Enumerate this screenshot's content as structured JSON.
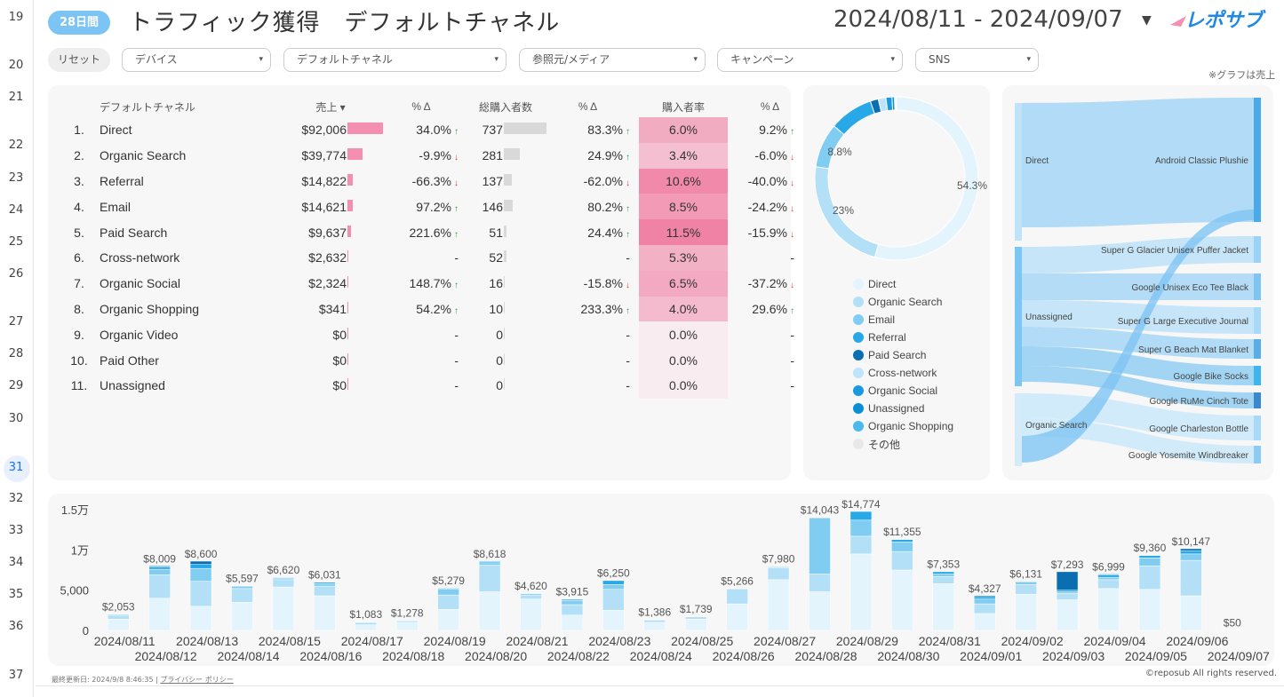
{
  "row_numbers": [
    "19",
    "20",
    "21",
    "22",
    "23",
    "24",
    "25",
    "26",
    "27",
    "28",
    "29",
    "30",
    "31",
    "32",
    "33",
    "34",
    "35",
    "36",
    "37"
  ],
  "active_row": "31",
  "header": {
    "period_badge": "28日間",
    "title": "トラフィック獲得　デフォルトチャネル",
    "date_range": "2024/08/11 - 2024/09/07",
    "date_caret": "▼",
    "logo_text": "レポサブ"
  },
  "filters": {
    "reset": "リセット",
    "items": [
      {
        "label": "デバイス"
      },
      {
        "label": "デフォルトチャネル"
      },
      {
        "label": "参照元/メディア"
      },
      {
        "label": "キャンペーン"
      },
      {
        "label": "SNS"
      }
    ],
    "caret": "▾"
  },
  "note": "※グラフは売上",
  "table": {
    "headers": {
      "channel": "デフォルトチャネル",
      "sales": "売上 ▾",
      "pct1": "% Δ",
      "buyers": "総購入者数",
      "pct2": "% Δ",
      "rate": "購入者率",
      "pct3": "% Δ"
    },
    "rows": [
      {
        "idx": "1.",
        "channel": "Direct",
        "sales": "$92,006",
        "sales_val": 92006,
        "pct1": "34.0%",
        "pct1_dir": "up",
        "buyers": "737",
        "buyers_val": 737,
        "pct2": "83.3%",
        "pct2_dir": "up",
        "rate": "6.0%",
        "rate_val": 6.0,
        "pct3": "9.2%",
        "pct3_dir": "up"
      },
      {
        "idx": "2.",
        "channel": "Organic Search",
        "sales": "$39,774",
        "sales_val": 39774,
        "pct1": "-9.9%",
        "pct1_dir": "down",
        "buyers": "281",
        "buyers_val": 281,
        "pct2": "24.9%",
        "pct2_dir": "up",
        "rate": "3.4%",
        "rate_val": 3.4,
        "pct3": "-6.0%",
        "pct3_dir": "down"
      },
      {
        "idx": "3.",
        "channel": "Referral",
        "sales": "$14,822",
        "sales_val": 14822,
        "pct1": "-66.3%",
        "pct1_dir": "down",
        "buyers": "137",
        "buyers_val": 137,
        "pct2": "-62.0%",
        "pct2_dir": "down",
        "rate": "10.6%",
        "rate_val": 10.6,
        "pct3": "-40.0%",
        "pct3_dir": "down"
      },
      {
        "idx": "4.",
        "channel": "Email",
        "sales": "$14,621",
        "sales_val": 14621,
        "pct1": "97.2%",
        "pct1_dir": "up",
        "buyers": "146",
        "buyers_val": 146,
        "pct2": "80.2%",
        "pct2_dir": "up",
        "rate": "8.5%",
        "rate_val": 8.5,
        "pct3": "-24.2%",
        "pct3_dir": "down"
      },
      {
        "idx": "5.",
        "channel": "Paid Search",
        "sales": "$9,637",
        "sales_val": 9637,
        "pct1": "221.6%",
        "pct1_dir": "up",
        "buyers": "51",
        "buyers_val": 51,
        "pct2": "24.4%",
        "pct2_dir": "up",
        "rate": "11.5%",
        "rate_val": 11.5,
        "pct3": "-15.9%",
        "pct3_dir": "down"
      },
      {
        "idx": "6.",
        "channel": "Cross-network",
        "sales": "$2,632",
        "sales_val": 2632,
        "pct1": "-",
        "pct1_dir": "none",
        "buyers": "52",
        "buyers_val": 52,
        "pct2": "-",
        "pct2_dir": "none",
        "rate": "5.3%",
        "rate_val": 5.3,
        "pct3": "-",
        "pct3_dir": "none"
      },
      {
        "idx": "7.",
        "channel": "Organic Social",
        "sales": "$2,324",
        "sales_val": 2324,
        "pct1": "148.7%",
        "pct1_dir": "up",
        "buyers": "16",
        "buyers_val": 16,
        "pct2": "-15.8%",
        "pct2_dir": "down",
        "rate": "6.5%",
        "rate_val": 6.5,
        "pct3": "-37.2%",
        "pct3_dir": "down"
      },
      {
        "idx": "8.",
        "channel": "Organic Shopping",
        "sales": "$341",
        "sales_val": 341,
        "pct1": "54.2%",
        "pct1_dir": "up",
        "buyers": "10",
        "buyers_val": 10,
        "pct2": "233.3%",
        "pct2_dir": "up",
        "rate": "4.0%",
        "rate_val": 4.0,
        "pct3": "29.6%",
        "pct3_dir": "up"
      },
      {
        "idx": "9.",
        "channel": "Organic Video",
        "sales": "$0",
        "sales_val": 0,
        "pct1": "-",
        "pct1_dir": "none",
        "buyers": "0",
        "buyers_val": 0,
        "pct2": "-",
        "pct2_dir": "none",
        "rate": "0.0%",
        "rate_val": 0,
        "pct3": "-",
        "pct3_dir": "none"
      },
      {
        "idx": "10.",
        "channel": "Paid Other",
        "sales": "$0",
        "sales_val": 0,
        "pct1": "-",
        "pct1_dir": "none",
        "buyers": "0",
        "buyers_val": 0,
        "pct2": "-",
        "pct2_dir": "none",
        "rate": "0.0%",
        "rate_val": 0,
        "pct3": "-",
        "pct3_dir": "none"
      },
      {
        "idx": "11.",
        "channel": "Unassigned",
        "sales": "$0",
        "sales_val": 0,
        "pct1": "-",
        "pct1_dir": "none",
        "buyers": "0",
        "buyers_val": 0,
        "pct2": "-",
        "pct2_dir": "none",
        "rate": "0.0%",
        "rate_val": 0,
        "pct3": "-",
        "pct3_dir": "none"
      }
    ],
    "arrow_up": "↑",
    "arrow_down": "↓"
  },
  "legend": [
    {
      "label": "Direct",
      "color": "#e3f4fd"
    },
    {
      "label": "Organic Search",
      "color": "#b3e0f7"
    },
    {
      "label": "Email",
      "color": "#81cdf2"
    },
    {
      "label": "Referral",
      "color": "#29a8e8"
    },
    {
      "label": "Paid Search",
      "color": "#0a6fb0"
    },
    {
      "label": "Cross-network",
      "color": "#bfe3f8"
    },
    {
      "label": "Organic Social",
      "color": "#1a99e0"
    },
    {
      "label": "Unassigned",
      "color": "#0b8ed6"
    },
    {
      "label": "Organic Shopping",
      "color": "#4cb8ee"
    },
    {
      "label": "その他",
      "color": "#e8e8e8"
    }
  ],
  "sankey": {
    "sources": [
      "Direct",
      "Unassigned",
      "Organic Search"
    ],
    "targets": [
      "Android Classic Plushie",
      "Super G Glacier Unisex Puffer Jacket",
      "Google Unisex Eco Tee Black",
      "Super G Large Executive Journal",
      "Super G Beach Mat Blanket",
      "Google Bike Socks",
      "Google RuMe Cinch Tote",
      "Google Charleston Bottle",
      "Google Yosemite Windbreaker"
    ]
  },
  "chart_data": [
    {
      "type": "pie",
      "title": "",
      "style": "donut",
      "categories": [
        "Direct",
        "Organic Search",
        "Email",
        "Referral",
        "Paid Search",
        "Cross-network",
        "Organic Social",
        "Unassigned",
        "Organic Shopping",
        "その他"
      ],
      "values": [
        54.3,
        23.0,
        8.8,
        8.7,
        1.6,
        1.5,
        1.2,
        0.5,
        0.2,
        0.2
      ],
      "labels": [
        "54.3%",
        "23%",
        "8.8%"
      ]
    },
    {
      "type": "bar",
      "stacked": true,
      "title": "",
      "xlabel": "",
      "ylabel": "",
      "ylim": [
        0,
        15000
      ],
      "yticks": [
        {
          "value": 0,
          "label": "0"
        },
        {
          "value": 5000,
          "label": "5,000"
        },
        {
          "value": 10000,
          "label": "1万"
        },
        {
          "value": 15000,
          "label": "1.5万"
        }
      ],
      "categories": [
        "2024/08/11",
        "2024/08/12",
        "2024/08/13",
        "2024/08/14",
        "2024/08/15",
        "2024/08/16",
        "2024/08/17",
        "2024/08/18",
        "2024/08/19",
        "2024/08/20",
        "2024/08/21",
        "2024/08/22",
        "2024/08/23",
        "2024/08/24",
        "2024/08/25",
        "2024/08/26",
        "2024/08/27",
        "2024/08/28",
        "2024/08/29",
        "2024/08/30",
        "2024/08/31",
        "2024/09/01",
        "2024/09/02",
        "2024/09/03",
        "2024/09/04",
        "2024/09/05",
        "2024/09/06",
        "2024/09/07"
      ],
      "totals": [
        2053,
        8009,
        8600,
        5597,
        6620,
        6031,
        1083,
        1278,
        5279,
        8618,
        4620,
        3915,
        6250,
        1386,
        1739,
        5266,
        7980,
        14043,
        14774,
        11355,
        7353,
        4327,
        6131,
        7293,
        6999,
        9360,
        10147,
        50
      ],
      "total_labels": [
        "$2,053",
        "$8,009",
        "$8,600",
        "$5,597",
        "$6,620",
        "$6,031",
        "$1,083",
        "$1,278",
        "$5,279",
        "$8,618",
        "$4,620",
        "$3,915",
        "$6,250",
        "$1,386",
        "$1,739",
        "$5,266",
        "$7,980",
        "$14,043",
        "$14,774",
        "$11,355",
        "$7,353",
        "$4,327",
        "$6,131",
        "$7,293",
        "$6,999",
        "$9,360",
        "$10,147",
        "$50"
      ],
      "series": [
        {
          "name": "Direct",
          "values": [
            1400,
            4000,
            3000,
            3500,
            5400,
            4300,
            700,
            1000,
            2600,
            4800,
            3900,
            1900,
            2500,
            1000,
            1400,
            3300,
            6300,
            4800,
            9500,
            7500,
            5800,
            2100,
            4500,
            3800,
            5200,
            5100,
            4300,
            50
          ]
        },
        {
          "name": "Organic Search",
          "values": [
            400,
            2900,
            3100,
            1700,
            900,
            1200,
            300,
            200,
            1800,
            3300,
            500,
            1300,
            2600,
            300,
            300,
            1800,
            1500,
            2200,
            2200,
            2300,
            900,
            1200,
            1200,
            800,
            1100,
            2900,
            4400,
            0
          ]
        },
        {
          "name": "Email",
          "values": [
            100,
            700,
            1600,
            300,
            200,
            300,
            50,
            50,
            700,
            300,
            200,
            500,
            600,
            50,
            39,
            100,
            100,
            7000,
            2000,
            1200,
            300,
            600,
            300,
            200,
            300,
            1000,
            800,
            0
          ]
        },
        {
          "name": "Referral",
          "values": [
            100,
            300,
            500,
            60,
            100,
            200,
            20,
            20,
            100,
            200,
            20,
            200,
            500,
            36,
            0,
            60,
            60,
            43,
            1074,
            300,
            300,
            300,
            100,
            200,
            300,
            300,
            400,
            0
          ]
        },
        {
          "name": "Paid Search",
          "values": [
            53,
            109,
            400,
            37,
            20,
            31,
            13,
            8,
            79,
            18,
            0,
            15,
            50,
            0,
            0,
            6,
            20,
            0,
            0,
            55,
            53,
            127,
            31,
            2293,
            99,
            60,
            247,
            0
          ]
        }
      ]
    }
  ],
  "footer": {
    "updated": "最終更新日: 2024/9/8 8:46:35",
    "privacy": "プライバシー ポリシー",
    "copyright": "©reposub All rights reserved."
  }
}
